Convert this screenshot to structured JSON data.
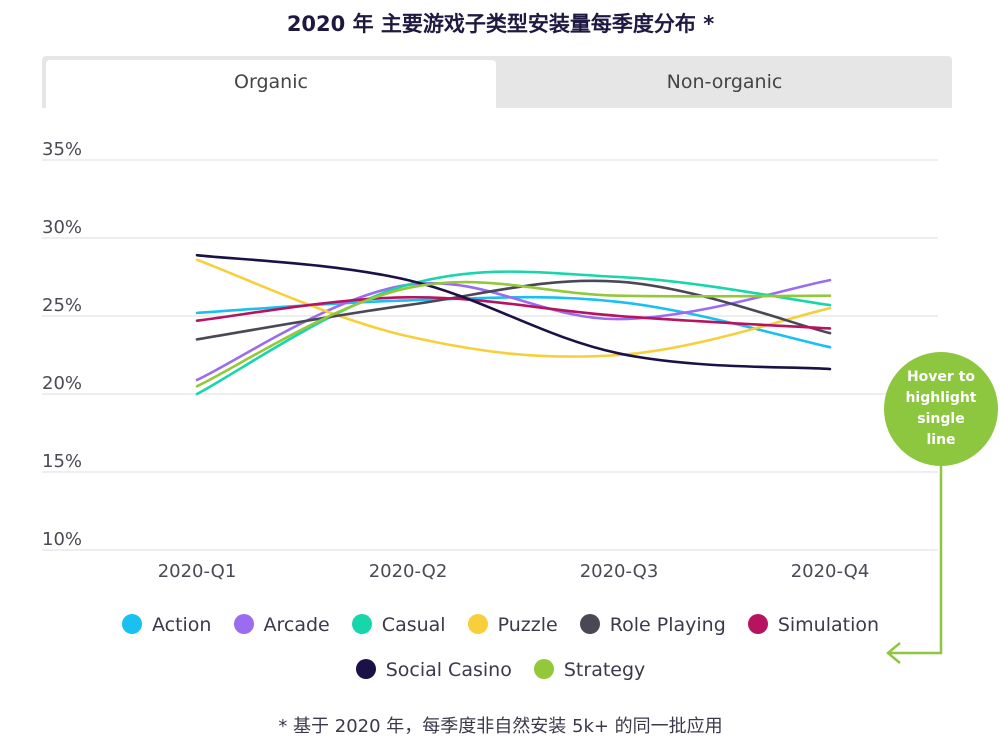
{
  "title": "2020 年 主要游戏子类型安装量每季度分布 *",
  "tabs": [
    {
      "label": "Organic",
      "active": true
    },
    {
      "label": "Non-organic",
      "active": false
    }
  ],
  "hover_hint": "Hover to highlight single line",
  "footnote": "* 基于 2020 年，每季度非自然安装 5k+ 的同一批应用",
  "chart_data": {
    "type": "line",
    "categories": [
      "2020-Q1",
      "2020-Q2",
      "2020-Q3",
      "2020-Q4"
    ],
    "ylim": [
      10,
      35
    ],
    "yticks": [
      "35%",
      "30%",
      "25%",
      "20%",
      "15%",
      "10%"
    ],
    "ytick_values": [
      35,
      30,
      25,
      20,
      15,
      10
    ],
    "grid": true,
    "legend_position": "bottom",
    "series": [
      {
        "name": "Action",
        "color": "#18c1f2",
        "values": [
          25.2,
          26.0,
          25.9,
          23.0
        ]
      },
      {
        "name": "Arcade",
        "color": "#9b6cf0",
        "values": [
          20.9,
          27.0,
          24.8,
          27.3
        ]
      },
      {
        "name": "Casual",
        "color": "#18d6ac",
        "values": [
          20.0,
          27.0,
          27.5,
          25.7
        ]
      },
      {
        "name": "Puzzle",
        "color": "#f7cf3b",
        "values": [
          28.6,
          23.7,
          22.5,
          25.5
        ]
      },
      {
        "name": "Role Playing",
        "color": "#4a4855",
        "values": [
          23.5,
          25.7,
          27.2,
          23.9
        ]
      },
      {
        "name": "Simulation",
        "color": "#b8135e",
        "values": [
          24.7,
          26.2,
          25.0,
          24.2
        ]
      },
      {
        "name": "Social Casino",
        "color": "#1c1147",
        "values": [
          28.9,
          27.3,
          22.6,
          21.6
        ]
      },
      {
        "name": "Strategy",
        "color": "#93c83a",
        "values": [
          20.5,
          26.8,
          26.3,
          26.3
        ]
      }
    ]
  }
}
